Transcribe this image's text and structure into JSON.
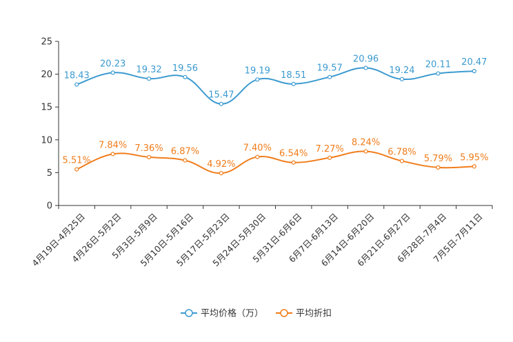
{
  "chart_data": {
    "type": "line",
    "categories": [
      "4月19日-4月25日",
      "4月26日-5月2日",
      "5月3日-5月9日",
      "5月10日-5月16日",
      "5月17日-5月23日",
      "5月24日-5月30日",
      "5月31日-6月6日",
      "6月7日-6月13日",
      "6月14日-6月20日",
      "6月21日-6月27日",
      "6月28日-7月4日",
      "7月5日-7月11日"
    ],
    "ylim": [
      0,
      25
    ],
    "yticks": [
      0,
      5,
      10,
      15,
      20,
      25
    ],
    "legend_position": "bottom-center",
    "series": [
      {
        "name": "平均价格（万）",
        "color": "#3b9ad0",
        "values": [
          18.43,
          20.23,
          19.32,
          19.56,
          15.47,
          19.19,
          18.51,
          19.57,
          20.96,
          19.24,
          20.11,
          20.47
        ],
        "labels": [
          "18.43",
          "20.23",
          "19.32",
          "19.56",
          "15.47",
          "19.19",
          "18.51",
          "19.57",
          "20.96",
          "19.24",
          "20.11",
          "20.47"
        ]
      },
      {
        "name": "平均折扣",
        "color": "#f07c1a",
        "values": [
          5.51,
          7.84,
          7.36,
          6.87,
          4.92,
          7.4,
          6.54,
          7.27,
          8.24,
          6.78,
          5.79,
          5.95
        ],
        "labels": [
          "5.51%",
          "7.84%",
          "7.36%",
          "6.87%",
          "4.92%",
          "7.40%",
          "6.54%",
          "7.27%",
          "8.24%",
          "6.78%",
          "5.79%",
          "5.95%"
        ]
      }
    ]
  }
}
